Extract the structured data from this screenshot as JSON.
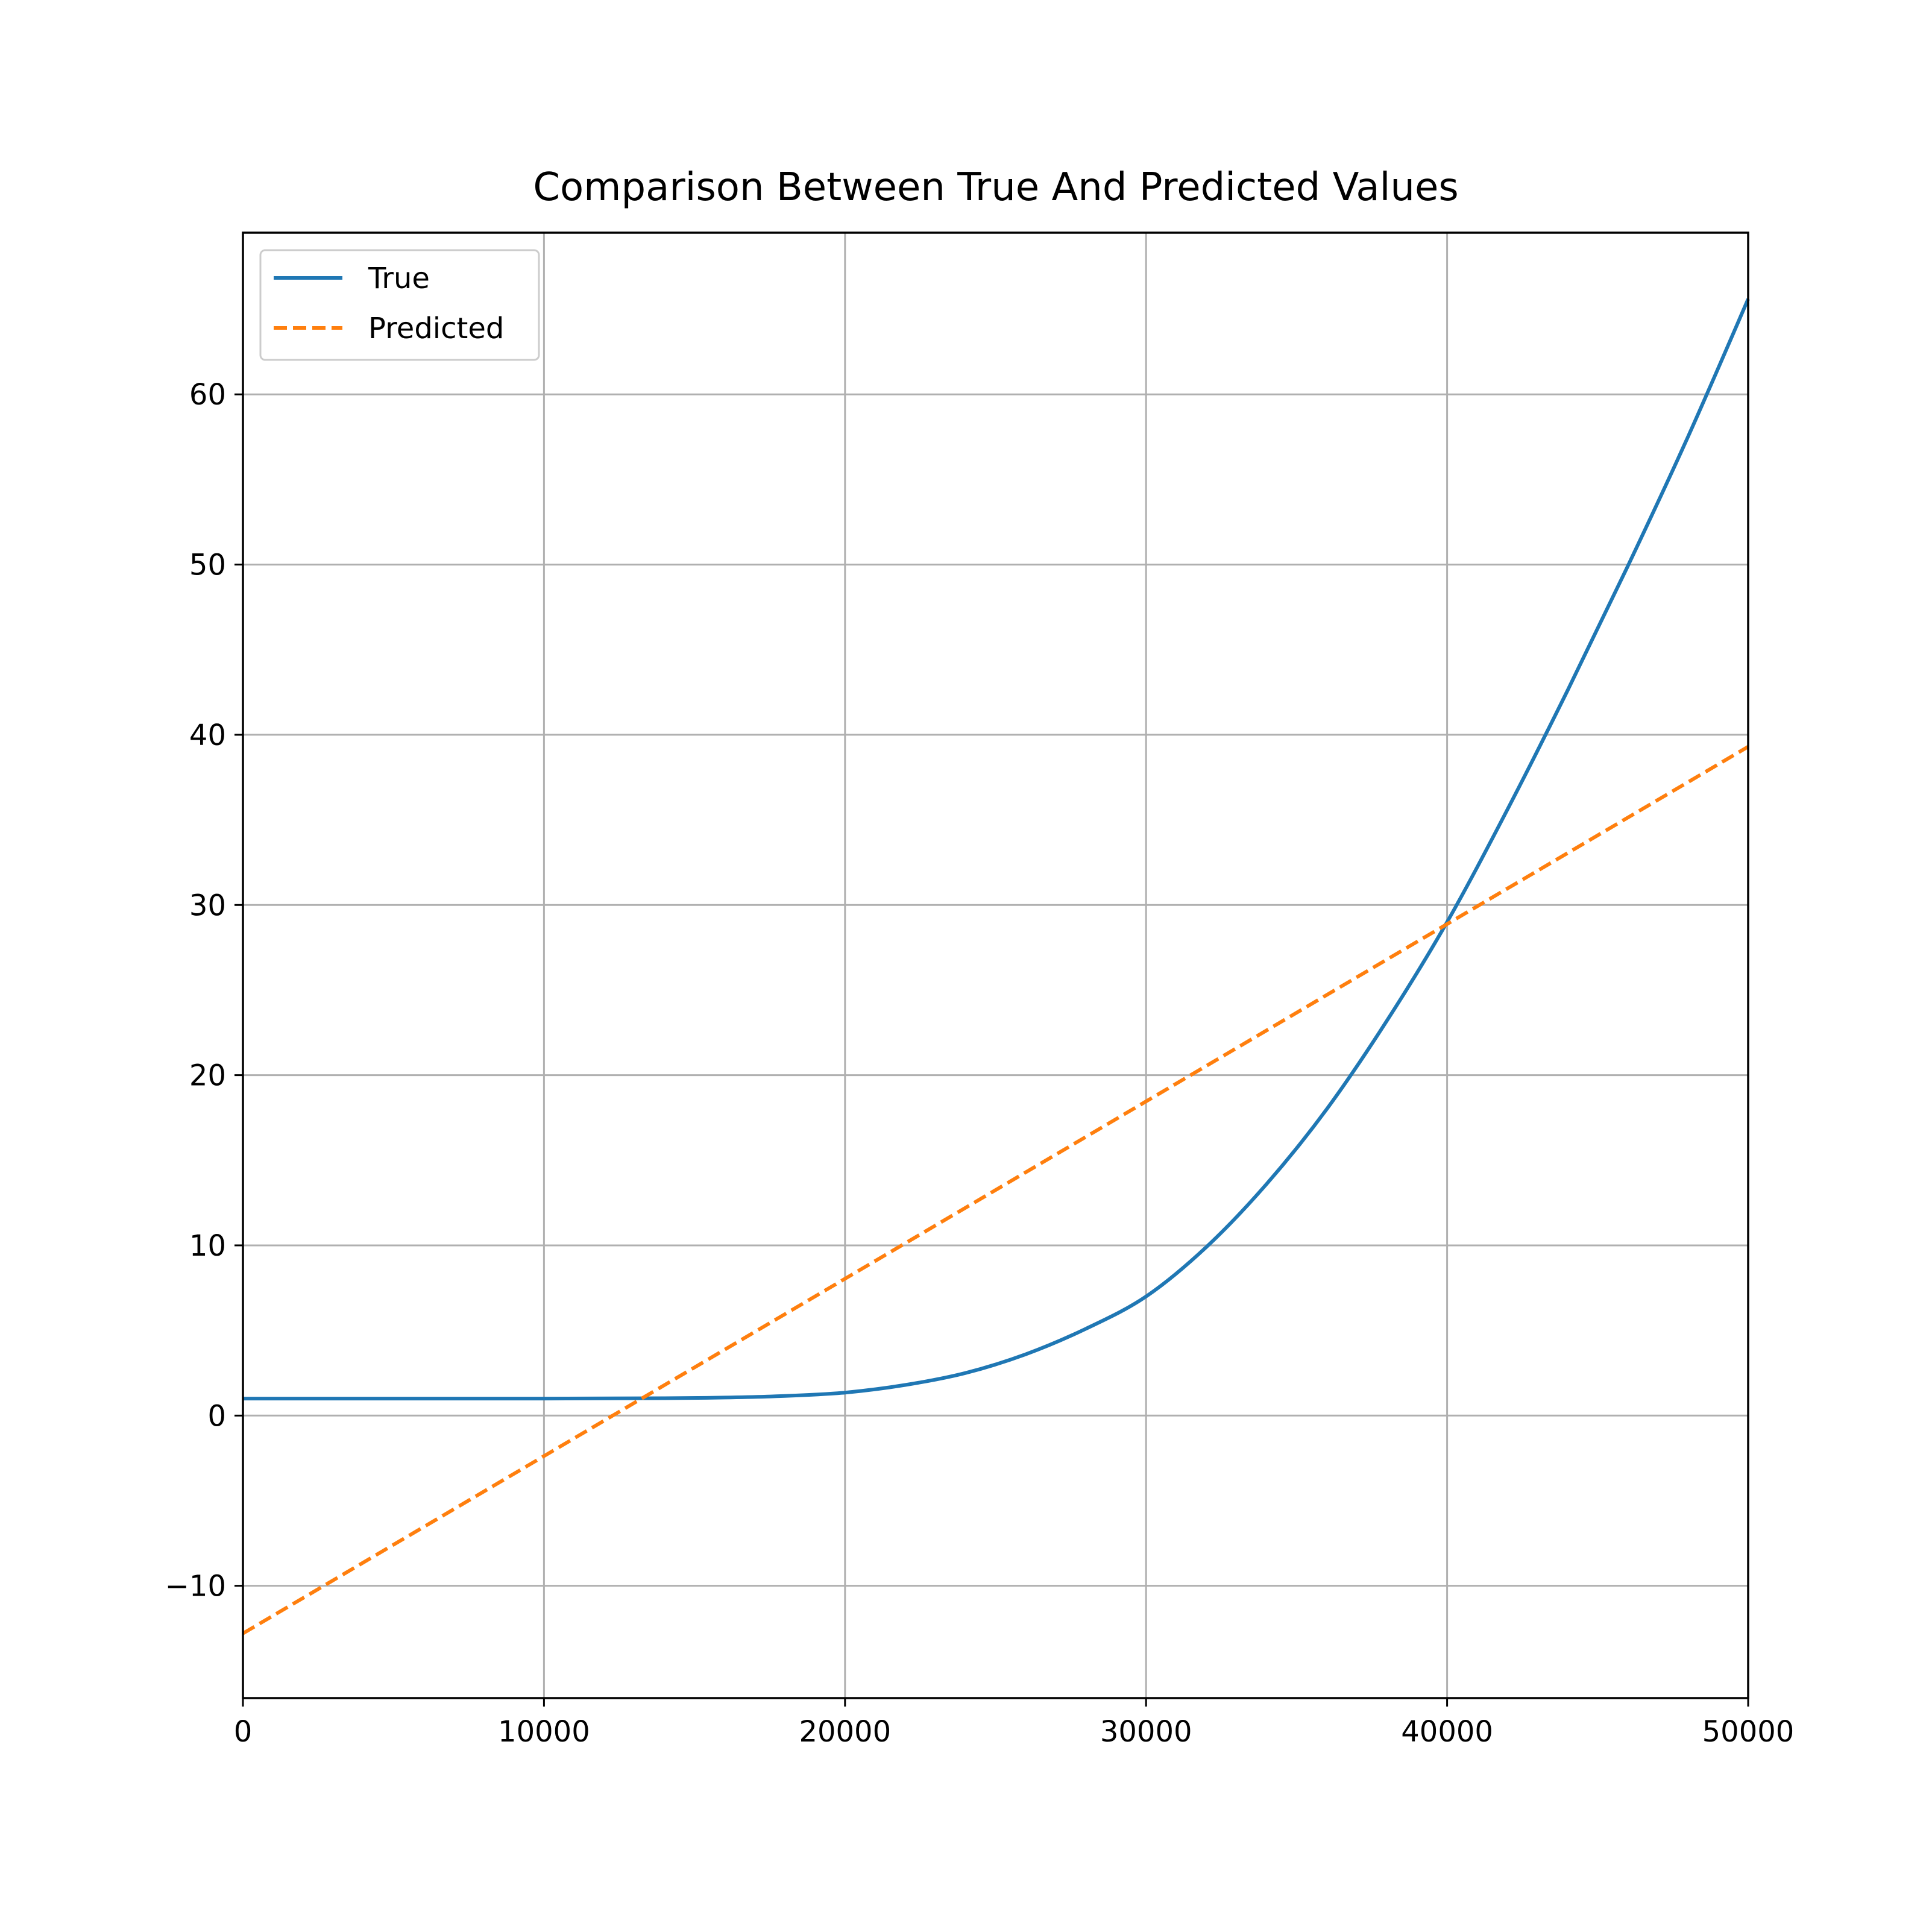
{
  "chart_data": {
    "type": "line",
    "title": "Comparison Between True And Predicted Values",
    "xlabel": "",
    "ylabel": "",
    "xlim": [
      0,
      50000
    ],
    "ylim": [
      -16.6,
      69.5
    ],
    "x_ticks": [
      0,
      10000,
      20000,
      30000,
      40000,
      50000
    ],
    "x_tick_labels": [
      "0",
      "10000",
      "20000",
      "30000",
      "40000",
      "50000"
    ],
    "y_ticks": [
      -10,
      0,
      10,
      20,
      30,
      40,
      50,
      60
    ],
    "y_tick_labels": [
      "−10",
      "0",
      "10",
      "20",
      "30",
      "40",
      "50",
      "60"
    ],
    "grid": true,
    "legend_position": "top-left",
    "series": [
      {
        "name": "True",
        "color": "#1f77b4",
        "style": "solid",
        "x": [
          0,
          5000,
          10000,
          14000,
          16000,
          18000,
          20000,
          22000,
          24000,
          26000,
          28000,
          30000,
          32000,
          34000,
          36000,
          38000,
          40000,
          42000,
          44000,
          46000,
          48000,
          50000
        ],
        "y": [
          1.0,
          1.0,
          1.0,
          1.02,
          1.06,
          1.15,
          1.35,
          1.8,
          2.5,
          3.6,
          5.1,
          7.0,
          9.9,
          13.6,
          18.0,
          23.2,
          29.0,
          35.6,
          42.6,
          49.9,
          57.5,
          65.6
        ]
      },
      {
        "name": "Predicted",
        "color": "#ff7f0e",
        "style": "dashed",
        "x": [
          0,
          50000
        ],
        "y": [
          -12.8,
          39.3
        ]
      }
    ]
  }
}
